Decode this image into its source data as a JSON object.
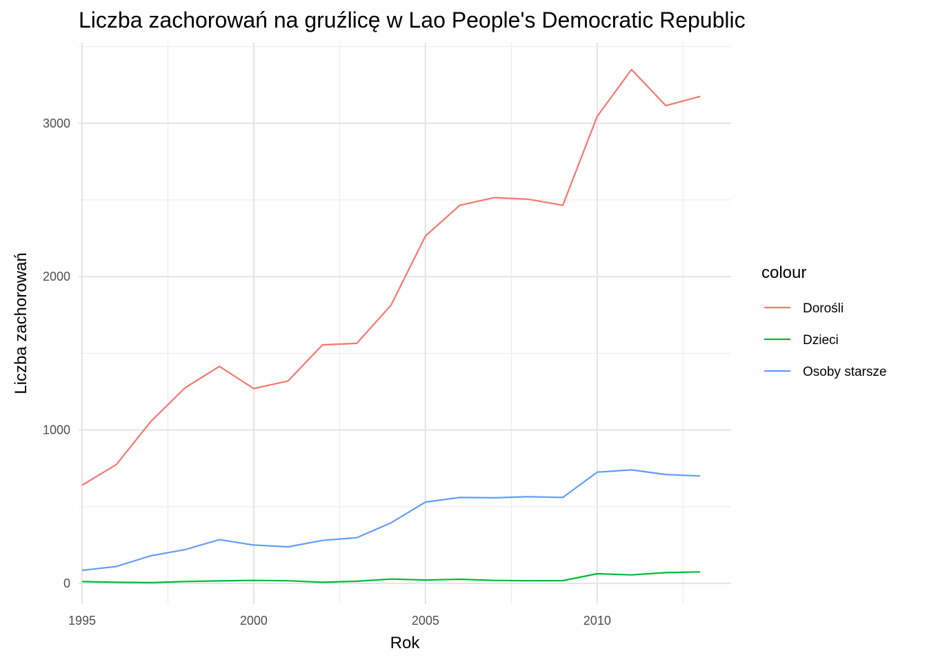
{
  "chart_data": {
    "type": "line",
    "title": "Liczba zachorowań na gruźlicę w Lao People's Democratic Republic",
    "xlabel": "Rok",
    "ylabel": "Liczba zachorowań",
    "x": [
      1995,
      1996,
      1997,
      1998,
      1999,
      2000,
      2001,
      2002,
      2003,
      2004,
      2005,
      2006,
      2007,
      2008,
      2009,
      2010,
      2011,
      2012,
      2013
    ],
    "xlim": [
      1994.9,
      2013.9
    ],
    "ylim": [
      -135,
      3525
    ],
    "xticks": [
      {
        "value": 1995,
        "label": "1995"
      },
      {
        "value": 2000,
        "label": "2000"
      },
      {
        "value": 2005,
        "label": "2005"
      },
      {
        "value": 2010,
        "label": "2010"
      }
    ],
    "yticks": [
      {
        "value": 0,
        "label": "0"
      },
      {
        "value": 1000,
        "label": "1000"
      },
      {
        "value": 2000,
        "label": "2000"
      },
      {
        "value": 3000,
        "label": "3000"
      }
    ],
    "grid": true,
    "legend": {
      "title": "colour",
      "position": "right"
    },
    "series": [
      {
        "name": "Dorośli",
        "color": "#F8766D",
        "values": [
          640,
          775,
          1055,
          1275,
          1415,
          1270,
          1320,
          1555,
          1565,
          1815,
          2265,
          2465,
          2515,
          2505,
          2465,
          3045,
          3350,
          3115,
          3175
        ]
      },
      {
        "name": "Dzieci",
        "color": "#00BA38",
        "values": [
          12,
          7,
          5,
          12,
          16,
          19,
          17,
          7,
          14,
          28,
          22,
          27,
          19,
          17,
          18,
          63,
          55,
          70,
          75
        ]
      },
      {
        "name": "Osoby starsze",
        "color": "#619CFF",
        "values": [
          85,
          110,
          180,
          220,
          285,
          250,
          238,
          280,
          298,
          395,
          530,
          560,
          558,
          565,
          560,
          725,
          740,
          710,
          700
        ]
      }
    ]
  }
}
